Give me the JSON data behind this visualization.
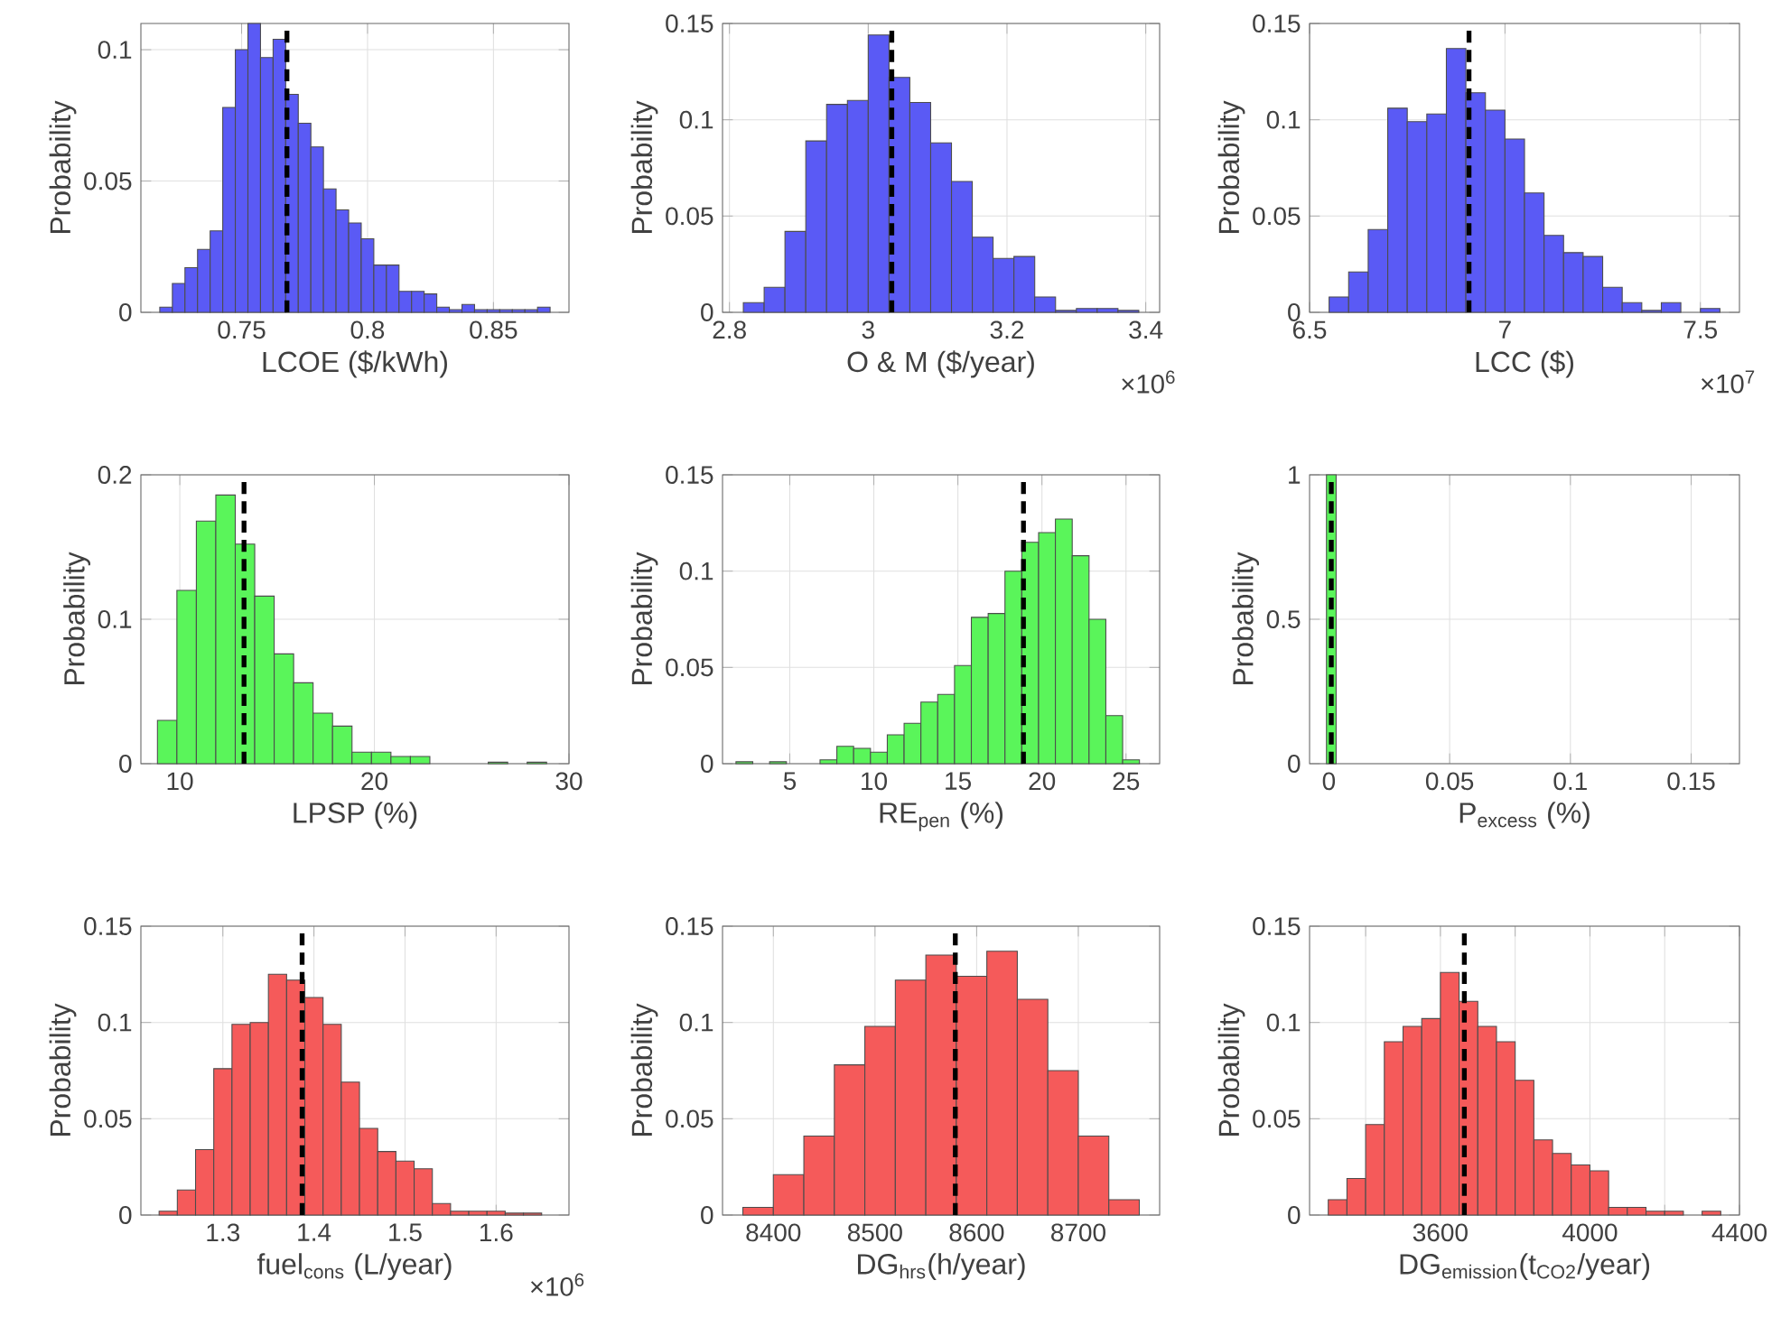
{
  "chart_data": [
    {
      "type": "histogram",
      "xlabel": "LCOE ($/kWh)",
      "ylabel": "Probability",
      "color": "#5a5af5",
      "grid": true,
      "bins": [
        0.7175,
        0.7225,
        0.7275,
        0.7325,
        0.7375,
        0.7425,
        0.7475,
        0.7525,
        0.7575,
        0.7625,
        0.7675,
        0.7725,
        0.7775,
        0.7825,
        0.7875,
        0.7925,
        0.7975,
        0.8025,
        0.8075,
        0.8125,
        0.8175,
        0.8225,
        0.8275,
        0.8325,
        0.8375,
        0.8425,
        0.8475,
        0.8525,
        0.8575,
        0.8625,
        0.8675,
        0.8725
      ],
      "values": [
        0.002,
        0.011,
        0.017,
        0.024,
        0.031,
        0.078,
        0.1,
        0.11,
        0.097,
        0.104,
        0.083,
        0.072,
        0.063,
        0.047,
        0.039,
        0.034,
        0.028,
        0.018,
        0.018,
        0.008,
        0.008,
        0.007,
        0.002,
        0.001,
        0.003,
        0.001,
        0.001,
        0.001,
        0.001,
        0.001,
        0.002
      ],
      "xlim": [
        0.71,
        0.88
      ],
      "ylim": [
        0,
        0.11
      ],
      "xticks": [
        0.75,
        0.8,
        0.85
      ],
      "yticks": [
        0,
        0.05,
        0.1
      ],
      "ref_lines": [
        {
          "axis": "x",
          "value": 0.768,
          "color": "#000000",
          "line_style": "dashed"
        }
      ]
    },
    {
      "type": "histogram",
      "xlabel": "O & M ($/year)",
      "ylabel": "Probability",
      "color": "#5a5af5",
      "grid": true,
      "bins": [
        2.82,
        2.85,
        2.88,
        2.91,
        2.94,
        2.97,
        3.0,
        3.03,
        3.06,
        3.09,
        3.12,
        3.15,
        3.18,
        3.21,
        3.24,
        3.27,
        3.3,
        3.33,
        3.36,
        3.39
      ],
      "values": [
        0.005,
        0.013,
        0.042,
        0.089,
        0.108,
        0.11,
        0.144,
        0.122,
        0.109,
        0.088,
        0.068,
        0.039,
        0.028,
        0.029,
        0.008,
        0.001,
        0.002,
        0.002,
        0.001
      ],
      "xlim": [
        2.79,
        3.42
      ],
      "ylim": [
        0,
        0.15
      ],
      "xticks": [
        2.8,
        3,
        3.2,
        3.4
      ],
      "yticks": [
        0,
        0.05,
        0.1,
        0.15
      ],
      "ref_lines": [
        {
          "axis": "x",
          "value": 3.034,
          "color": "#000000",
          "line_style": "dashed"
        }
      ],
      "annotations": [
        "×10$^{6}$"
      ]
    },
    {
      "type": "histogram",
      "xlabel": "LCC ($)",
      "ylabel": "Probability",
      "color": "#5a5af5",
      "grid": true,
      "bins": [
        6.55,
        6.6,
        6.65,
        6.7,
        6.75,
        6.8,
        6.85,
        6.9,
        6.95,
        7.0,
        7.05,
        7.1,
        7.15,
        7.2,
        7.25,
        7.3,
        7.35,
        7.4,
        7.45,
        7.5,
        7.55
      ],
      "values": [
        0.008,
        0.021,
        0.043,
        0.106,
        0.099,
        0.103,
        0.137,
        0.114,
        0.105,
        0.09,
        0.062,
        0.04,
        0.031,
        0.029,
        0.013,
        0.005,
        0.001,
        0.005,
        0,
        0.002
      ],
      "xlim": [
        6.5,
        7.6
      ],
      "ylim": [
        0,
        0.15
      ],
      "xticks": [
        6.5,
        7,
        7.5
      ],
      "yticks": [
        0,
        0.05,
        0.1,
        0.15
      ],
      "ref_lines": [
        {
          "axis": "x",
          "value": 6.908,
          "color": "#000000",
          "line_style": "dashed"
        }
      ],
      "annotations": [
        "×10$^{7}$"
      ]
    },
    {
      "type": "histogram",
      "xlabel": "LPSP (%)",
      "ylabel": "Probability",
      "color": "#5af55a",
      "grid": true,
      "bins": [
        8.85,
        9.85,
        10.85,
        11.85,
        12.85,
        13.85,
        14.85,
        15.85,
        16.85,
        17.85,
        18.85,
        19.85,
        20.85,
        21.85,
        22.85,
        23.85,
        24.85,
        25.85,
        26.85,
        27.85,
        28.85,
        29.85
      ],
      "values": [
        0.03,
        0.12,
        0.168,
        0.186,
        0.152,
        0.116,
        0.076,
        0.056,
        0.035,
        0.026,
        0.008,
        0.008,
        0.005,
        0.005,
        0,
        0,
        0,
        0.001,
        0,
        0.001,
        0
      ],
      "xlim": [
        8,
        30
      ],
      "ylim": [
        0,
        0.2
      ],
      "xticks": [
        10,
        20,
        30
      ],
      "yticks": [
        0,
        0.1,
        0.2
      ],
      "ref_lines": [
        {
          "axis": "x",
          "value": 13.3,
          "color": "#000000",
          "line_style": "dashed"
        }
      ]
    },
    {
      "type": "histogram",
      "xlabel": "RE$_{pen}$ (%)",
      "ylabel": "Probability",
      "color": "#5af55a",
      "grid": true,
      "bins": [
        1.8,
        2.8,
        3.8,
        4.8,
        5.8,
        6.8,
        7.8,
        8.8,
        9.8,
        10.8,
        11.8,
        12.8,
        13.8,
        14.8,
        15.8,
        16.8,
        17.8,
        18.8,
        19.8,
        20.8,
        21.8,
        22.8,
        23.8,
        24.8,
        25.8
      ],
      "values": [
        0.001,
        0,
        0.001,
        0,
        0,
        0.002,
        0.009,
        0.008,
        0.006,
        0.015,
        0.021,
        0.032,
        0.036,
        0.051,
        0.076,
        0.078,
        0.1,
        0.115,
        0.12,
        0.127,
        0.108,
        0.075,
        0.025,
        0.002
      ],
      "xlim": [
        1,
        27
      ],
      "ylim": [
        0,
        0.15
      ],
      "xticks": [
        5,
        10,
        15,
        20,
        25
      ],
      "yticks": [
        0,
        0.05,
        0.1,
        0.15
      ],
      "ref_lines": [
        {
          "axis": "x",
          "value": 18.9,
          "color": "#000000",
          "line_style": "dashed"
        }
      ]
    },
    {
      "type": "histogram",
      "xlabel": "P$_{excess}$ (%)",
      "ylabel": "Probability",
      "color": "#5af55a",
      "grid": true,
      "bins": [
        -0.001,
        0.003
      ],
      "values": [
        1
      ],
      "xlim": [
        -0.008,
        0.17
      ],
      "ylim": [
        0,
        1
      ],
      "xticks": [
        0,
        0.05,
        0.1,
        0.15
      ],
      "yticks": [
        0,
        0.5,
        1
      ],
      "ref_lines": [
        {
          "axis": "x",
          "value": 0.001,
          "color": "#000000",
          "line_style": "dashed"
        }
      ]
    },
    {
      "type": "histogram",
      "xlabel": "fuel$_{cons}$ (L/year)",
      "ylabel": "Probability",
      "color": "#f55a5a",
      "grid": true,
      "bins": [
        1.23,
        1.25,
        1.27,
        1.29,
        1.31,
        1.33,
        1.35,
        1.37,
        1.39,
        1.41,
        1.43,
        1.45,
        1.47,
        1.49,
        1.51,
        1.53,
        1.55,
        1.57,
        1.59,
        1.61,
        1.63,
        1.65
      ],
      "values": [
        0.002,
        0.013,
        0.034,
        0.076,
        0.099,
        0.1,
        0.125,
        0.122,
        0.113,
        0.099,
        0.069,
        0.045,
        0.033,
        0.028,
        0.024,
        0.006,
        0.002,
        0.002,
        0.002,
        0.001,
        0.001
      ],
      "xlim": [
        1.21,
        1.68
      ],
      "ylim": [
        0,
        0.15
      ],
      "xticks": [
        1.3,
        1.4,
        1.5,
        1.6
      ],
      "yticks": [
        0,
        0.05,
        0.1,
        0.15
      ],
      "ref_lines": [
        {
          "axis": "x",
          "value": 1.387,
          "color": "#000000",
          "line_style": "dashed"
        }
      ],
      "annotations": [
        "×10$^{6}$"
      ]
    },
    {
      "type": "histogram",
      "xlabel": "DG$_{hrs}$(h/year)",
      "ylabel": "Probability",
      "color": "#f55a5a",
      "grid": true,
      "bins": [
        8370,
        8400,
        8430,
        8460,
        8490,
        8520,
        8550,
        8580,
        8610,
        8640,
        8670,
        8700,
        8730,
        8760
      ],
      "values": [
        0.004,
        0.021,
        0.041,
        0.078,
        0.098,
        0.122,
        0.135,
        0.124,
        0.137,
        0.112,
        0.075,
        0.041,
        0.008
      ],
      "xlim": [
        8350,
        8780
      ],
      "ylim": [
        0,
        0.15
      ],
      "xticks": [
        8400,
        8500,
        8600,
        8700
      ],
      "yticks": [
        0,
        0.05,
        0.1,
        0.15
      ],
      "ref_lines": [
        {
          "axis": "x",
          "value": 8579,
          "color": "#000000",
          "line_style": "dashed"
        }
      ]
    },
    {
      "type": "histogram",
      "xlabel": "DG$_{emission}$(t$_{CO2}$/year)",
      "ylabel": "Probability",
      "color": "#f55a5a",
      "grid": true,
      "bins": [
        3300,
        3350,
        3400,
        3450,
        3500,
        3550,
        3600,
        3650,
        3700,
        3750,
        3800,
        3850,
        3900,
        3950,
        4000,
        4050,
        4100,
        4150,
        4200,
        4250,
        4300,
        4350
      ],
      "values": [
        0.008,
        0.019,
        0.047,
        0.09,
        0.098,
        0.102,
        0.126,
        0.111,
        0.098,
        0.09,
        0.07,
        0.039,
        0.032,
        0.026,
        0.023,
        0.004,
        0.004,
        0.002,
        0.002,
        0,
        0.002
      ],
      "xlim": [
        3250,
        4400
      ],
      "ylim": [
        0,
        0.15
      ],
      "xticks": [
        {
          "value": 3400,
          "label": null
        },
        3600,
        {
          "value": 3800,
          "label": null
        },
        4000,
        {
          "value": 4200,
          "label": null
        },
        4400
      ],
      "yticks": [
        0,
        0.05,
        0.1,
        0.15
      ],
      "ref_lines": [
        {
          "axis": "x",
          "value": 3664,
          "color": "#000000",
          "line_style": "dashed"
        }
      ]
    }
  ]
}
